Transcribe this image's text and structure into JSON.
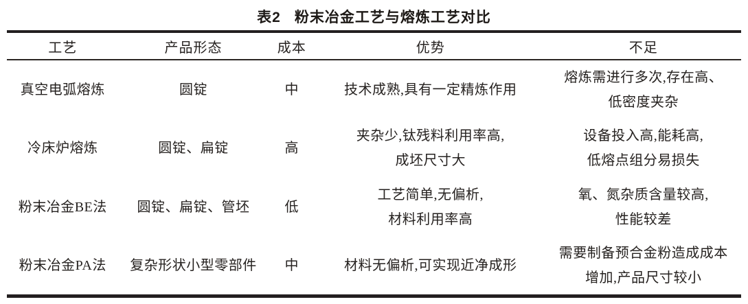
{
  "title": {
    "label": "表2",
    "text": "粉末冶金工艺与熔炼工艺对比"
  },
  "table": {
    "columns": [
      "工艺",
      "产品形态",
      "成本",
      "优势",
      "不足"
    ],
    "rows": [
      {
        "process": "真空电弧熔炼",
        "form": "圆锭",
        "cost": "中",
        "advantage": "技术成熟,具有一定精炼作用",
        "drawback": "熔炼需进行多次,存在高、\n低密度夹杂"
      },
      {
        "process": "冷床炉熔炼",
        "form": "圆锭、扁锭",
        "cost": "高",
        "advantage": "夹杂少,钛残料利用率高,\n成坯尺寸大",
        "drawback": "设备投入高,能耗高,\n低熔点组分易损失"
      },
      {
        "process": "粉末冶金BE法",
        "form": "圆锭、扁锭、管坯",
        "cost": "低",
        "advantage": "工艺简单,无偏析,\n材料利用率高",
        "drawback": "氧、氮杂质含量较高,\n性能较差"
      },
      {
        "process": "粉末冶金PA法",
        "form": "复杂形状小型零部件",
        "cost": "中",
        "advantage": "材料无偏析,可实现近净成形",
        "drawback": "需要制备预合金粉造成成本\n增加,产品尺寸较小"
      }
    ]
  },
  "colors": {
    "text": "#262220",
    "rule": "#231f20",
    "background": "#ffffff"
  }
}
